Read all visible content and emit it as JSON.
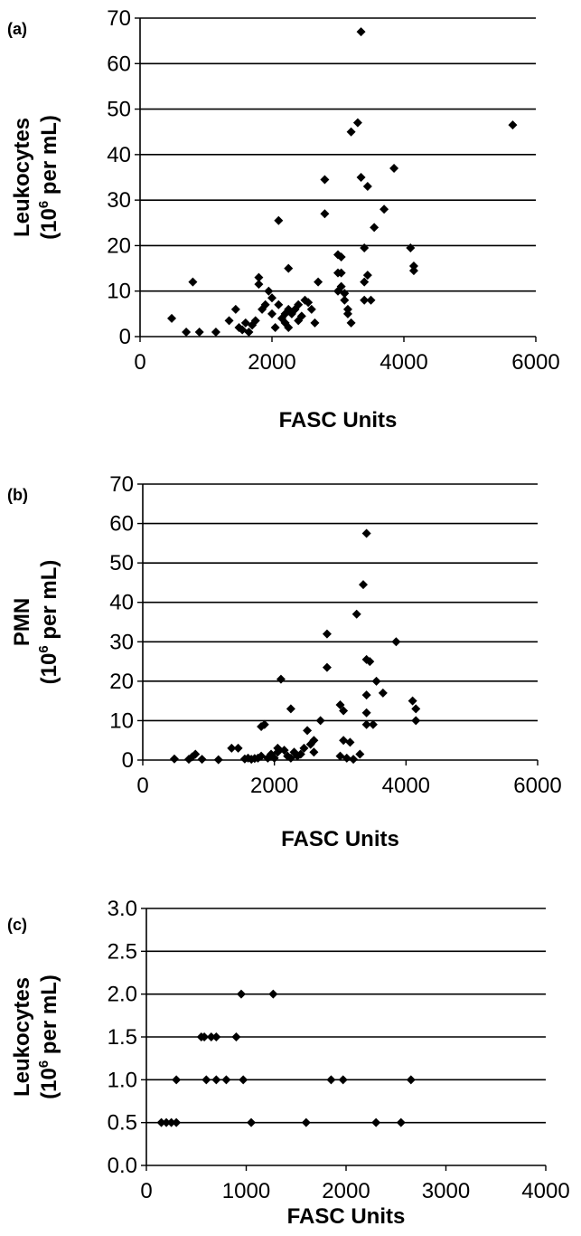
{
  "chart_data": [
    {
      "type": "scatter",
      "panel_label": "(a)",
      "title": "",
      "xlabel": "FASC Units",
      "ylabel": {
        "line1": "Leukocytes",
        "line2_prefix": "(10",
        "line2_sup": "6",
        "line2_suffix": " per mL)"
      },
      "xlim": [
        0,
        6000
      ],
      "ylim": [
        0,
        70
      ],
      "xticks": [
        0,
        2000,
        4000,
        6000
      ],
      "xtick_labels": [
        "0",
        "2000",
        "4000",
        "6000"
      ],
      "yticks": [
        0,
        10,
        20,
        30,
        40,
        50,
        60,
        70
      ],
      "ytick_labels": [
        "0",
        "10",
        "20",
        "30",
        "40",
        "50",
        "60",
        "70"
      ],
      "grid": "horizontal",
      "legend": "none",
      "marker_color": "#000000",
      "series": [
        {
          "points": [
            [
              480,
              4
            ],
            [
              700,
              1
            ],
            [
              800,
              12
            ],
            [
              900,
              1
            ],
            [
              1150,
              1
            ],
            [
              1350,
              3.5
            ],
            [
              1450,
              6
            ],
            [
              1500,
              2
            ],
            [
              1550,
              1.5
            ],
            [
              1600,
              3
            ],
            [
              1650,
              1
            ],
            [
              1700,
              2.5
            ],
            [
              1750,
              3.5
            ],
            [
              1800,
              13
            ],
            [
              1800,
              11.5
            ],
            [
              1850,
              6
            ],
            [
              1900,
              7
            ],
            [
              1950,
              10
            ],
            [
              2000,
              8.5
            ],
            [
              2000,
              5
            ],
            [
              2050,
              2
            ],
            [
              2100,
              7
            ],
            [
              2100,
              25.5
            ],
            [
              2150,
              4
            ],
            [
              2200,
              5
            ],
            [
              2200,
              3
            ],
            [
              2250,
              6
            ],
            [
              2250,
              15
            ],
            [
              2250,
              2
            ],
            [
              2300,
              5
            ],
            [
              2350,
              6
            ],
            [
              2400,
              7
            ],
            [
              2400,
              3.5
            ],
            [
              2450,
              4.5
            ],
            [
              2500,
              8
            ],
            [
              2550,
              7.5
            ],
            [
              2600,
              6
            ],
            [
              2650,
              3
            ],
            [
              2700,
              12
            ],
            [
              2800,
              34.5
            ],
            [
              2800,
              27
            ],
            [
              3000,
              18
            ],
            [
              3050,
              17.5
            ],
            [
              3000,
              14
            ],
            [
              3050,
              14
            ],
            [
              3050,
              11
            ],
            [
              3000,
              10
            ],
            [
              3100,
              9.5
            ],
            [
              3100,
              8
            ],
            [
              3150,
              6
            ],
            [
              3150,
              5
            ],
            [
              3200,
              3
            ],
            [
              3200,
              45
            ],
            [
              3300,
              47
            ],
            [
              3350,
              67
            ],
            [
              3350,
              35
            ],
            [
              3400,
              19.5
            ],
            [
              3400,
              12
            ],
            [
              3400,
              8
            ],
            [
              3450,
              33
            ],
            [
              3450,
              13.5
            ],
            [
              3500,
              8
            ],
            [
              3550,
              24
            ],
            [
              3700,
              28
            ],
            [
              3850,
              37
            ],
            [
              4100,
              19.5
            ],
            [
              4150,
              15.5
            ],
            [
              4150,
              14.5
            ],
            [
              5650,
              46.5
            ]
          ]
        }
      ]
    },
    {
      "type": "scatter",
      "panel_label": "(b)",
      "title": "",
      "xlabel": "FASC Units",
      "ylabel": {
        "line1": "PMN",
        "line2_prefix": "(10",
        "line2_sup": "6",
        "line2_suffix": " per mL)"
      },
      "xlim": [
        0,
        6000
      ],
      "ylim": [
        0,
        70
      ],
      "xticks": [
        0,
        2000,
        4000,
        6000
      ],
      "xtick_labels": [
        "0",
        "2000",
        "4000",
        "6000"
      ],
      "yticks": [
        0,
        10,
        20,
        30,
        40,
        50,
        60,
        70
      ],
      "ytick_labels": [
        "0",
        "10",
        "20",
        "30",
        "40",
        "50",
        "60",
        "70"
      ],
      "grid": "horizontal",
      "legend": "none",
      "marker_color": "#000000",
      "series": [
        {
          "points": [
            [
              480,
              0.3
            ],
            [
              700,
              0.2
            ],
            [
              750,
              0.8
            ],
            [
              800,
              1.5
            ],
            [
              900,
              0.2
            ],
            [
              1150,
              0.1
            ],
            [
              1350,
              3
            ],
            [
              1450,
              3
            ],
            [
              1550,
              0.3
            ],
            [
              1600,
              0.5
            ],
            [
              1650,
              0.2
            ],
            [
              1700,
              0.4
            ],
            [
              1750,
              0.5
            ],
            [
              1800,
              8.5
            ],
            [
              1800,
              1
            ],
            [
              1850,
              9
            ],
            [
              1900,
              0.5
            ],
            [
              1950,
              1.5
            ],
            [
              2000,
              0.5
            ],
            [
              2050,
              2
            ],
            [
              2050,
              3
            ],
            [
              2100,
              20.5
            ],
            [
              2150,
              2.5
            ],
            [
              2200,
              1
            ],
            [
              2250,
              13
            ],
            [
              2250,
              0.5
            ],
            [
              2300,
              2
            ],
            [
              2350,
              1
            ],
            [
              2400,
              1.5
            ],
            [
              2450,
              3
            ],
            [
              2500,
              7.5
            ],
            [
              2550,
              4
            ],
            [
              2600,
              5
            ],
            [
              2600,
              2
            ],
            [
              2700,
              10
            ],
            [
              2800,
              32
            ],
            [
              2800,
              23.5
            ],
            [
              3000,
              14
            ],
            [
              3050,
              12.5
            ],
            [
              3050,
              5
            ],
            [
              3000,
              1
            ],
            [
              3100,
              0.5
            ],
            [
              3150,
              4.5
            ],
            [
              3200,
              0.2
            ],
            [
              3250,
              37
            ],
            [
              3300,
              1.5
            ],
            [
              3350,
              44.5
            ],
            [
              3400,
              57.5
            ],
            [
              3400,
              25.5
            ],
            [
              3400,
              16.5
            ],
            [
              3400,
              12
            ],
            [
              3400,
              9
            ],
            [
              3450,
              25
            ],
            [
              3500,
              9
            ],
            [
              3550,
              20
            ],
            [
              3650,
              17
            ],
            [
              3850,
              30
            ],
            [
              4100,
              15
            ],
            [
              4150,
              13
            ],
            [
              4150,
              10
            ]
          ]
        }
      ]
    },
    {
      "type": "scatter",
      "panel_label": "(c)",
      "title": "",
      "xlabel": "FASC Units",
      "ylabel": {
        "line1": "Leukocytes",
        "line2_prefix": "(10",
        "line2_sup": "6",
        "line2_suffix": " per mL)"
      },
      "xlim": [
        0,
        4000
      ],
      "ylim": [
        0,
        3
      ],
      "xticks": [
        0,
        1000,
        2000,
        3000,
        4000
      ],
      "xtick_labels": [
        "0",
        "1000",
        "2000",
        "3000",
        "4000"
      ],
      "yticks": [
        0,
        0.5,
        1,
        1.5,
        2,
        2.5,
        3
      ],
      "ytick_labels": [
        "0.0",
        "0.5",
        "1.0",
        "1.5",
        "2.0",
        "2.5",
        "3.0"
      ],
      "grid": "horizontal",
      "legend": "none",
      "marker_color": "#000000",
      "series": [
        {
          "points": [
            [
              150,
              0.5
            ],
            [
              200,
              0.5
            ],
            [
              250,
              0.5
            ],
            [
              300,
              0.5
            ],
            [
              300,
              1
            ],
            [
              550,
              1.5
            ],
            [
              580,
              1.5
            ],
            [
              600,
              1
            ],
            [
              650,
              1.5
            ],
            [
              700,
              1
            ],
            [
              700,
              1.5
            ],
            [
              800,
              1
            ],
            [
              900,
              1.5
            ],
            [
              950,
              2
            ],
            [
              970,
              1
            ],
            [
              1050,
              0.5
            ],
            [
              1270,
              2
            ],
            [
              1600,
              0.5
            ],
            [
              1850,
              1
            ],
            [
              1970,
              1
            ],
            [
              2300,
              0.5
            ],
            [
              2550,
              0.5
            ],
            [
              2650,
              1
            ]
          ]
        }
      ]
    }
  ]
}
